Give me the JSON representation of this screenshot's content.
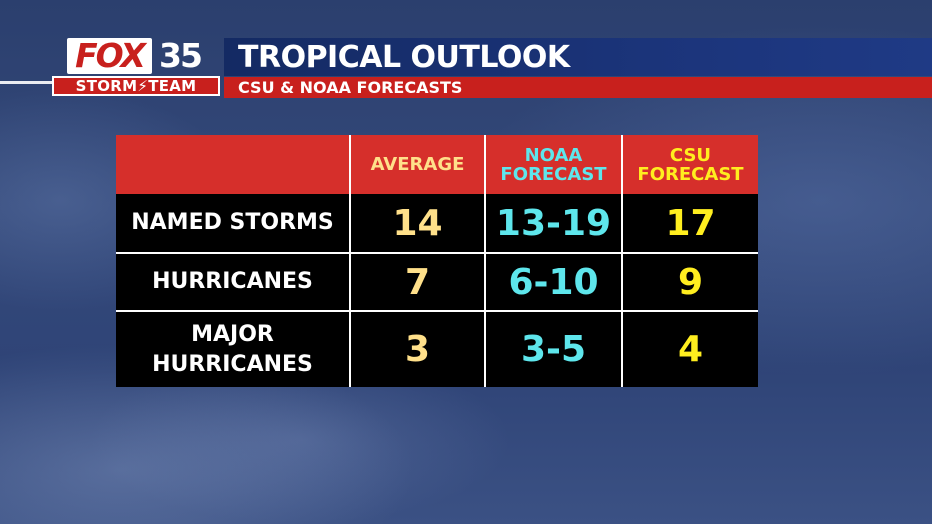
{
  "logo": {
    "network": "FOX",
    "channel": "35",
    "team": "STORM⚡TEAM"
  },
  "header": {
    "title": "TROPICAL OUTLOOK",
    "subtitle": "CSU & NOAA FORECASTS"
  },
  "colors": {
    "title_bar": "#1b347a",
    "subtitle_bar": "#c8201d",
    "table_header": "#d62f2b",
    "average": "#ffe08a",
    "noaa": "#5ee6ec",
    "csu": "#ffee1f"
  },
  "table": {
    "columns": {
      "average": "AVERAGE",
      "noaa_line1": "NOAA",
      "noaa_line2": "FORECAST",
      "csu_line1": "CSU",
      "csu_line2": "FORECAST"
    },
    "rows": [
      {
        "label": "NAMED STORMS",
        "average": "14",
        "noaa": "13-19",
        "csu": "17"
      },
      {
        "label": "HURRICANES",
        "average": "7",
        "noaa": "6-10",
        "csu": "9"
      },
      {
        "label_line1": "MAJOR",
        "label_line2": "HURRICANES",
        "average": "3",
        "noaa": "3-5",
        "csu": "4"
      }
    ]
  }
}
